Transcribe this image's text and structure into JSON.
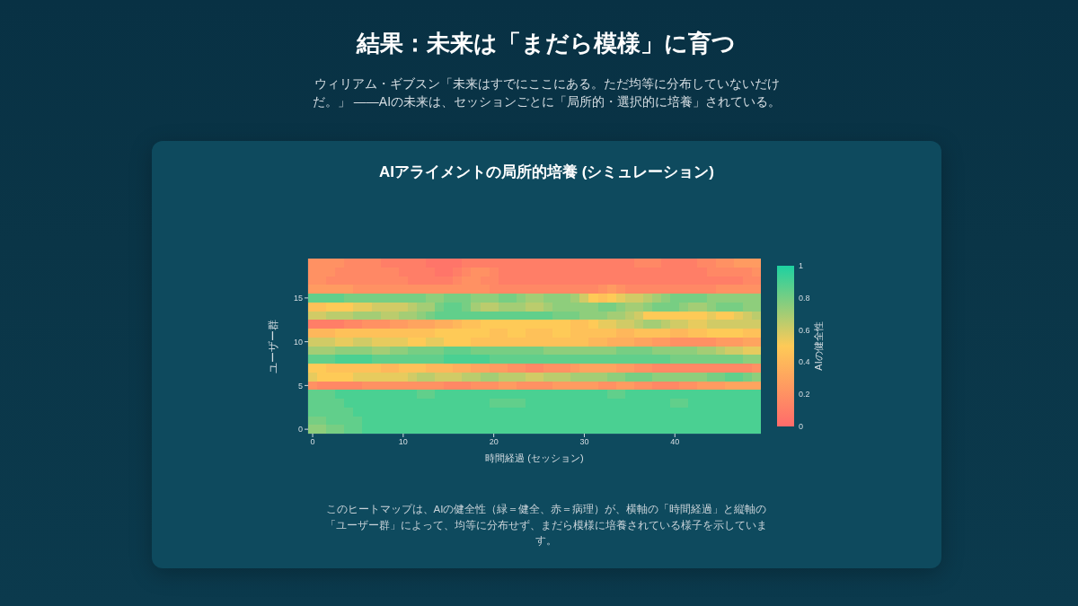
{
  "chart_data": {
    "type": "heatmap",
    "title": "結果：未来は「まだら模様」に育つ",
    "subtitle": "ウィリアム・ギブスン「未来はすでにここにある。ただ均等に分布していないだけだ。」 ——AIの未来は、セッションごとに「局所的・選択的に培養」されている。",
    "annotations": [
      "AIアライメントの局所的培養 (シミュレーション)",
      "このヒートマップは、AIの健全性（緑＝健全、赤＝病理）が、横軸の「時間経過」と縦軸の「ユーザー群」によって、均等に分布せず、まだら模様に培養されている様子を示しています。"
    ],
    "xlabel": "時間経過 (セッション)",
    "ylabel": "ユーザー群",
    "clabel": "AIの健全性",
    "x": [
      0,
      1,
      2,
      3,
      4,
      5,
      6,
      7,
      8,
      9,
      10,
      11,
      12,
      13,
      14,
      15,
      16,
      17,
      18,
      19,
      20,
      21,
      22,
      23,
      24,
      25,
      26,
      27,
      28,
      29,
      30,
      31,
      32,
      33,
      34,
      35,
      36,
      37,
      38,
      39,
      40,
      41,
      42,
      43,
      44,
      45,
      46,
      47,
      48,
      49
    ],
    "xlim": [
      -0.5,
      49.5
    ],
    "xticks": [
      0,
      10,
      20,
      30,
      40
    ],
    "ylim": [
      -0.5,
      19.5
    ],
    "yticks": [
      0,
      5,
      10,
      15
    ],
    "clim": [
      0,
      1
    ],
    "cticks": [
      0,
      0.2,
      0.4,
      0.6,
      0.8,
      1
    ],
    "cells": [
      [
        0.2,
        0.2,
        0.2,
        0.2,
        0.15,
        0.15,
        0.15,
        0.15,
        0.1,
        0.1,
        0.1,
        0.1,
        0.1,
        0.05,
        0.05,
        0.05,
        0.05,
        0.1,
        0.1,
        0.1,
        0.1,
        0.1,
        0.1,
        0.1,
        0.1,
        0.1,
        0.1,
        0.1,
        0.1,
        0.1,
        0.1,
        0.1,
        0.1,
        0.1,
        0.1,
        0.1,
        0.15,
        0.15,
        0.15,
        0.1,
        0.1,
        0.1,
        0.1,
        0.15,
        0.15,
        0.2,
        0.2,
        0.25,
        0.25,
        0.25
      ],
      [
        0.2,
        0.2,
        0.2,
        0.15,
        0.15,
        0.15,
        0.15,
        0.15,
        0.15,
        0.15,
        0.1,
        0.1,
        0.1,
        0.1,
        0.05,
        0.05,
        0.1,
        0.15,
        0.2,
        0.2,
        0.15,
        0.1,
        0.1,
        0.1,
        0.1,
        0.1,
        0.1,
        0.1,
        0.1,
        0.1,
        0.1,
        0.1,
        0.1,
        0.1,
        0.1,
        0.1,
        0.1,
        0.1,
        0.1,
        0.1,
        0.1,
        0.1,
        0.1,
        0.1,
        0.15,
        0.15,
        0.15,
        0.15,
        0.15,
        0.2
      ],
      [
        0.2,
        0.2,
        0.15,
        0.15,
        0.15,
        0.15,
        0.15,
        0.15,
        0.15,
        0.15,
        0.15,
        0.1,
        0.1,
        0.1,
        0.1,
        0.1,
        0.15,
        0.2,
        0.2,
        0.15,
        0.15,
        0.1,
        0.1,
        0.1,
        0.1,
        0.1,
        0.1,
        0.1,
        0.1,
        0.1,
        0.1,
        0.1,
        0.1,
        0.1,
        0.1,
        0.1,
        0.1,
        0.1,
        0.1,
        0.1,
        0.1,
        0.1,
        0.1,
        0.1,
        0.1,
        0.1,
        0.1,
        0.1,
        0.15,
        0.15
      ],
      [
        0.25,
        0.25,
        0.25,
        0.25,
        0.25,
        0.2,
        0.2,
        0.2,
        0.2,
        0.2,
        0.2,
        0.2,
        0.2,
        0.2,
        0.2,
        0.2,
        0.2,
        0.2,
        0.2,
        0.2,
        0.15,
        0.15,
        0.15,
        0.15,
        0.15,
        0.15,
        0.15,
        0.15,
        0.15,
        0.15,
        0.15,
        0.15,
        0.2,
        0.25,
        0.2,
        0.15,
        0.15,
        0.15,
        0.15,
        0.15,
        0.15,
        0.15,
        0.15,
        0.15,
        0.15,
        0.2,
        0.2,
        0.2,
        0.2,
        0.2
      ],
      [
        0.85,
        0.85,
        0.85,
        0.85,
        0.8,
        0.8,
        0.8,
        0.8,
        0.8,
        0.8,
        0.8,
        0.8,
        0.8,
        0.75,
        0.75,
        0.8,
        0.8,
        0.8,
        0.75,
        0.75,
        0.75,
        0.8,
        0.8,
        0.75,
        0.7,
        0.7,
        0.75,
        0.75,
        0.75,
        0.7,
        0.6,
        0.5,
        0.45,
        0.5,
        0.55,
        0.6,
        0.6,
        0.65,
        0.7,
        0.75,
        0.8,
        0.8,
        0.8,
        0.8,
        0.75,
        0.75,
        0.75,
        0.75,
        0.75,
        0.75
      ],
      [
        0.45,
        0.45,
        0.5,
        0.5,
        0.5,
        0.55,
        0.55,
        0.6,
        0.6,
        0.6,
        0.6,
        0.65,
        0.7,
        0.7,
        0.8,
        0.85,
        0.85,
        0.8,
        0.7,
        0.65,
        0.65,
        0.7,
        0.7,
        0.7,
        0.65,
        0.65,
        0.7,
        0.75,
        0.75,
        0.75,
        0.75,
        0.75,
        0.8,
        0.8,
        0.75,
        0.7,
        0.7,
        0.75,
        0.8,
        0.8,
        0.8,
        0.75,
        0.7,
        0.7,
        0.75,
        0.8,
        0.8,
        0.8,
        0.75,
        0.75
      ],
      [
        0.6,
        0.6,
        0.65,
        0.65,
        0.65,
        0.7,
        0.7,
        0.7,
        0.65,
        0.65,
        0.7,
        0.7,
        0.75,
        0.8,
        0.85,
        0.85,
        0.85,
        0.85,
        0.85,
        0.85,
        0.85,
        0.85,
        0.85,
        0.85,
        0.85,
        0.85,
        0.85,
        0.8,
        0.8,
        0.8,
        0.75,
        0.75,
        0.75,
        0.7,
        0.7,
        0.65,
        0.6,
        0.5,
        0.5,
        0.5,
        0.5,
        0.5,
        0.5,
        0.5,
        0.55,
        0.5,
        0.5,
        0.55,
        0.6,
        0.65
      ],
      [
        0.1,
        0.1,
        0.1,
        0.1,
        0.15,
        0.15,
        0.2,
        0.2,
        0.2,
        0.25,
        0.25,
        0.3,
        0.3,
        0.3,
        0.35,
        0.35,
        0.4,
        0.45,
        0.45,
        0.5,
        0.5,
        0.5,
        0.5,
        0.5,
        0.5,
        0.5,
        0.5,
        0.5,
        0.5,
        0.45,
        0.45,
        0.5,
        0.55,
        0.55,
        0.6,
        0.6,
        0.65,
        0.7,
        0.7,
        0.65,
        0.6,
        0.6,
        0.55,
        0.55,
        0.6,
        0.6,
        0.6,
        0.6,
        0.6,
        0.6
      ],
      [
        0.4,
        0.4,
        0.4,
        0.45,
        0.45,
        0.45,
        0.45,
        0.45,
        0.45,
        0.45,
        0.45,
        0.45,
        0.45,
        0.45,
        0.5,
        0.5,
        0.5,
        0.5,
        0.5,
        0.5,
        0.45,
        0.45,
        0.5,
        0.5,
        0.45,
        0.45,
        0.45,
        0.5,
        0.5,
        0.45,
        0.45,
        0.45,
        0.45,
        0.45,
        0.4,
        0.4,
        0.45,
        0.45,
        0.45,
        0.45,
        0.4,
        0.4,
        0.45,
        0.45,
        0.5,
        0.5,
        0.5,
        0.5,
        0.45,
        0.45
      ],
      [
        0.6,
        0.6,
        0.6,
        0.55,
        0.55,
        0.6,
        0.6,
        0.55,
        0.55,
        0.55,
        0.55,
        0.5,
        0.5,
        0.55,
        0.55,
        0.5,
        0.5,
        0.5,
        0.45,
        0.45,
        0.45,
        0.45,
        0.45,
        0.45,
        0.45,
        0.45,
        0.45,
        0.45,
        0.45,
        0.45,
        0.45,
        0.4,
        0.4,
        0.35,
        0.35,
        0.35,
        0.3,
        0.3,
        0.25,
        0.25,
        0.2,
        0.2,
        0.2,
        0.2,
        0.2,
        0.25,
        0.25,
        0.25,
        0.3,
        0.3
      ],
      [
        0.7,
        0.7,
        0.7,
        0.75,
        0.75,
        0.75,
        0.75,
        0.7,
        0.7,
        0.75,
        0.75,
        0.8,
        0.8,
        0.8,
        0.8,
        0.85,
        0.85,
        0.85,
        0.8,
        0.8,
        0.8,
        0.8,
        0.8,
        0.8,
        0.8,
        0.8,
        0.75,
        0.75,
        0.75,
        0.75,
        0.75,
        0.75,
        0.75,
        0.75,
        0.8,
        0.8,
        0.8,
        0.8,
        0.75,
        0.75,
        0.75,
        0.75,
        0.75,
        0.7,
        0.7,
        0.65,
        0.6,
        0.6,
        0.55,
        0.55
      ],
      [
        0.85,
        0.85,
        0.85,
        0.9,
        0.9,
        0.9,
        0.9,
        0.85,
        0.85,
        0.85,
        0.85,
        0.85,
        0.85,
        0.85,
        0.85,
        0.9,
        0.9,
        0.9,
        0.9,
        0.9,
        0.85,
        0.85,
        0.85,
        0.85,
        0.85,
        0.85,
        0.85,
        0.85,
        0.85,
        0.85,
        0.85,
        0.85,
        0.85,
        0.85,
        0.85,
        0.85,
        0.85,
        0.85,
        0.85,
        0.85,
        0.8,
        0.8,
        0.8,
        0.8,
        0.8,
        0.8,
        0.8,
        0.8,
        0.75,
        0.75
      ],
      [
        0.5,
        0.5,
        0.45,
        0.45,
        0.45,
        0.45,
        0.45,
        0.45,
        0.4,
        0.4,
        0.45,
        0.45,
        0.45,
        0.4,
        0.4,
        0.4,
        0.35,
        0.35,
        0.3,
        0.3,
        0.25,
        0.25,
        0.2,
        0.2,
        0.15,
        0.15,
        0.2,
        0.2,
        0.2,
        0.25,
        0.3,
        0.3,
        0.3,
        0.3,
        0.25,
        0.25,
        0.2,
        0.2,
        0.15,
        0.15,
        0.15,
        0.15,
        0.15,
        0.15,
        0.15,
        0.15,
        0.15,
        0.15,
        0.15,
        0.2
      ],
      [
        0.55,
        0.5,
        0.5,
        0.5,
        0.5,
        0.55,
        0.55,
        0.55,
        0.55,
        0.55,
        0.55,
        0.6,
        0.65,
        0.65,
        0.6,
        0.6,
        0.6,
        0.65,
        0.65,
        0.7,
        0.7,
        0.65,
        0.65,
        0.65,
        0.6,
        0.6,
        0.65,
        0.65,
        0.65,
        0.7,
        0.7,
        0.7,
        0.7,
        0.75,
        0.75,
        0.8,
        0.8,
        0.8,
        0.75,
        0.75,
        0.75,
        0.75,
        0.75,
        0.75,
        0.8,
        0.8,
        0.85,
        0.85,
        0.8,
        0.75
      ],
      [
        0.2,
        0.15,
        0.15,
        0.15,
        0.15,
        0.15,
        0.2,
        0.2,
        0.2,
        0.2,
        0.2,
        0.2,
        0.2,
        0.2,
        0.2,
        0.15,
        0.15,
        0.15,
        0.2,
        0.2,
        0.2,
        0.25,
        0.25,
        0.2,
        0.2,
        0.2,
        0.2,
        0.25,
        0.25,
        0.25,
        0.25,
        0.25,
        0.2,
        0.2,
        0.25,
        0.25,
        0.2,
        0.2,
        0.15,
        0.15,
        0.15,
        0.2,
        0.2,
        0.25,
        0.25,
        0.25,
        0.3,
        0.3,
        0.3,
        0.3
      ],
      [
        0.85,
        0.85,
        0.85,
        0.9,
        0.9,
        0.9,
        0.9,
        0.9,
        0.9,
        0.9,
        0.9,
        0.9,
        0.85,
        0.85,
        0.9,
        0.9,
        0.9,
        0.9,
        0.9,
        0.9,
        0.9,
        0.9,
        0.9,
        0.9,
        0.9,
        0.9,
        0.9,
        0.9,
        0.9,
        0.9,
        0.9,
        0.9,
        0.9,
        0.85,
        0.85,
        0.9,
        0.9,
        0.9,
        0.9,
        0.9,
        0.9,
        0.9,
        0.9,
        0.9,
        0.9,
        0.9,
        0.9,
        0.9,
        0.9,
        0.9
      ],
      [
        0.85,
        0.85,
        0.85,
        0.85,
        0.9,
        0.9,
        0.9,
        0.9,
        0.9,
        0.9,
        0.9,
        0.9,
        0.9,
        0.9,
        0.9,
        0.9,
        0.9,
        0.9,
        0.9,
        0.9,
        0.85,
        0.85,
        0.85,
        0.85,
        0.9,
        0.9,
        0.9,
        0.9,
        0.9,
        0.9,
        0.9,
        0.9,
        0.9,
        0.9,
        0.9,
        0.9,
        0.9,
        0.9,
        0.9,
        0.9,
        0.85,
        0.85,
        0.9,
        0.9,
        0.9,
        0.9,
        0.9,
        0.9,
        0.9,
        0.9
      ],
      [
        0.85,
        0.85,
        0.85,
        0.85,
        0.85,
        0.9,
        0.9,
        0.9,
        0.9,
        0.9,
        0.9,
        0.9,
        0.9,
        0.9,
        0.9,
        0.9,
        0.9,
        0.9,
        0.9,
        0.9,
        0.9,
        0.9,
        0.9,
        0.9,
        0.9,
        0.9,
        0.9,
        0.9,
        0.9,
        0.9,
        0.9,
        0.9,
        0.9,
        0.9,
        0.9,
        0.9,
        0.9,
        0.9,
        0.9,
        0.9,
        0.9,
        0.9,
        0.9,
        0.9,
        0.9,
        0.9,
        0.9,
        0.9,
        0.9,
        0.9
      ],
      [
        0.8,
        0.8,
        0.85,
        0.85,
        0.85,
        0.85,
        0.9,
        0.9,
        0.9,
        0.9,
        0.9,
        0.9,
        0.9,
        0.9,
        0.9,
        0.9,
        0.9,
        0.9,
        0.9,
        0.9,
        0.9,
        0.9,
        0.9,
        0.9,
        0.9,
        0.9,
        0.9,
        0.9,
        0.9,
        0.9,
        0.9,
        0.9,
        0.9,
        0.9,
        0.9,
        0.9,
        0.9,
        0.9,
        0.9,
        0.9,
        0.9,
        0.9,
        0.9,
        0.9,
        0.9,
        0.9,
        0.9,
        0.9,
        0.9,
        0.9
      ],
      [
        0.75,
        0.75,
        0.8,
        0.8,
        0.85,
        0.85,
        0.9,
        0.9,
        0.9,
        0.9,
        0.9,
        0.9,
        0.9,
        0.9,
        0.9,
        0.9,
        0.9,
        0.9,
        0.9,
        0.9,
        0.9,
        0.9,
        0.9,
        0.9,
        0.9,
        0.9,
        0.9,
        0.9,
        0.9,
        0.9,
        0.9,
        0.9,
        0.9,
        0.9,
        0.9,
        0.9,
        0.9,
        0.9,
        0.9,
        0.9,
        0.9,
        0.9,
        0.9,
        0.9,
        0.9,
        0.9,
        0.9,
        0.9,
        0.9,
        0.9
      ]
    ]
  }
}
